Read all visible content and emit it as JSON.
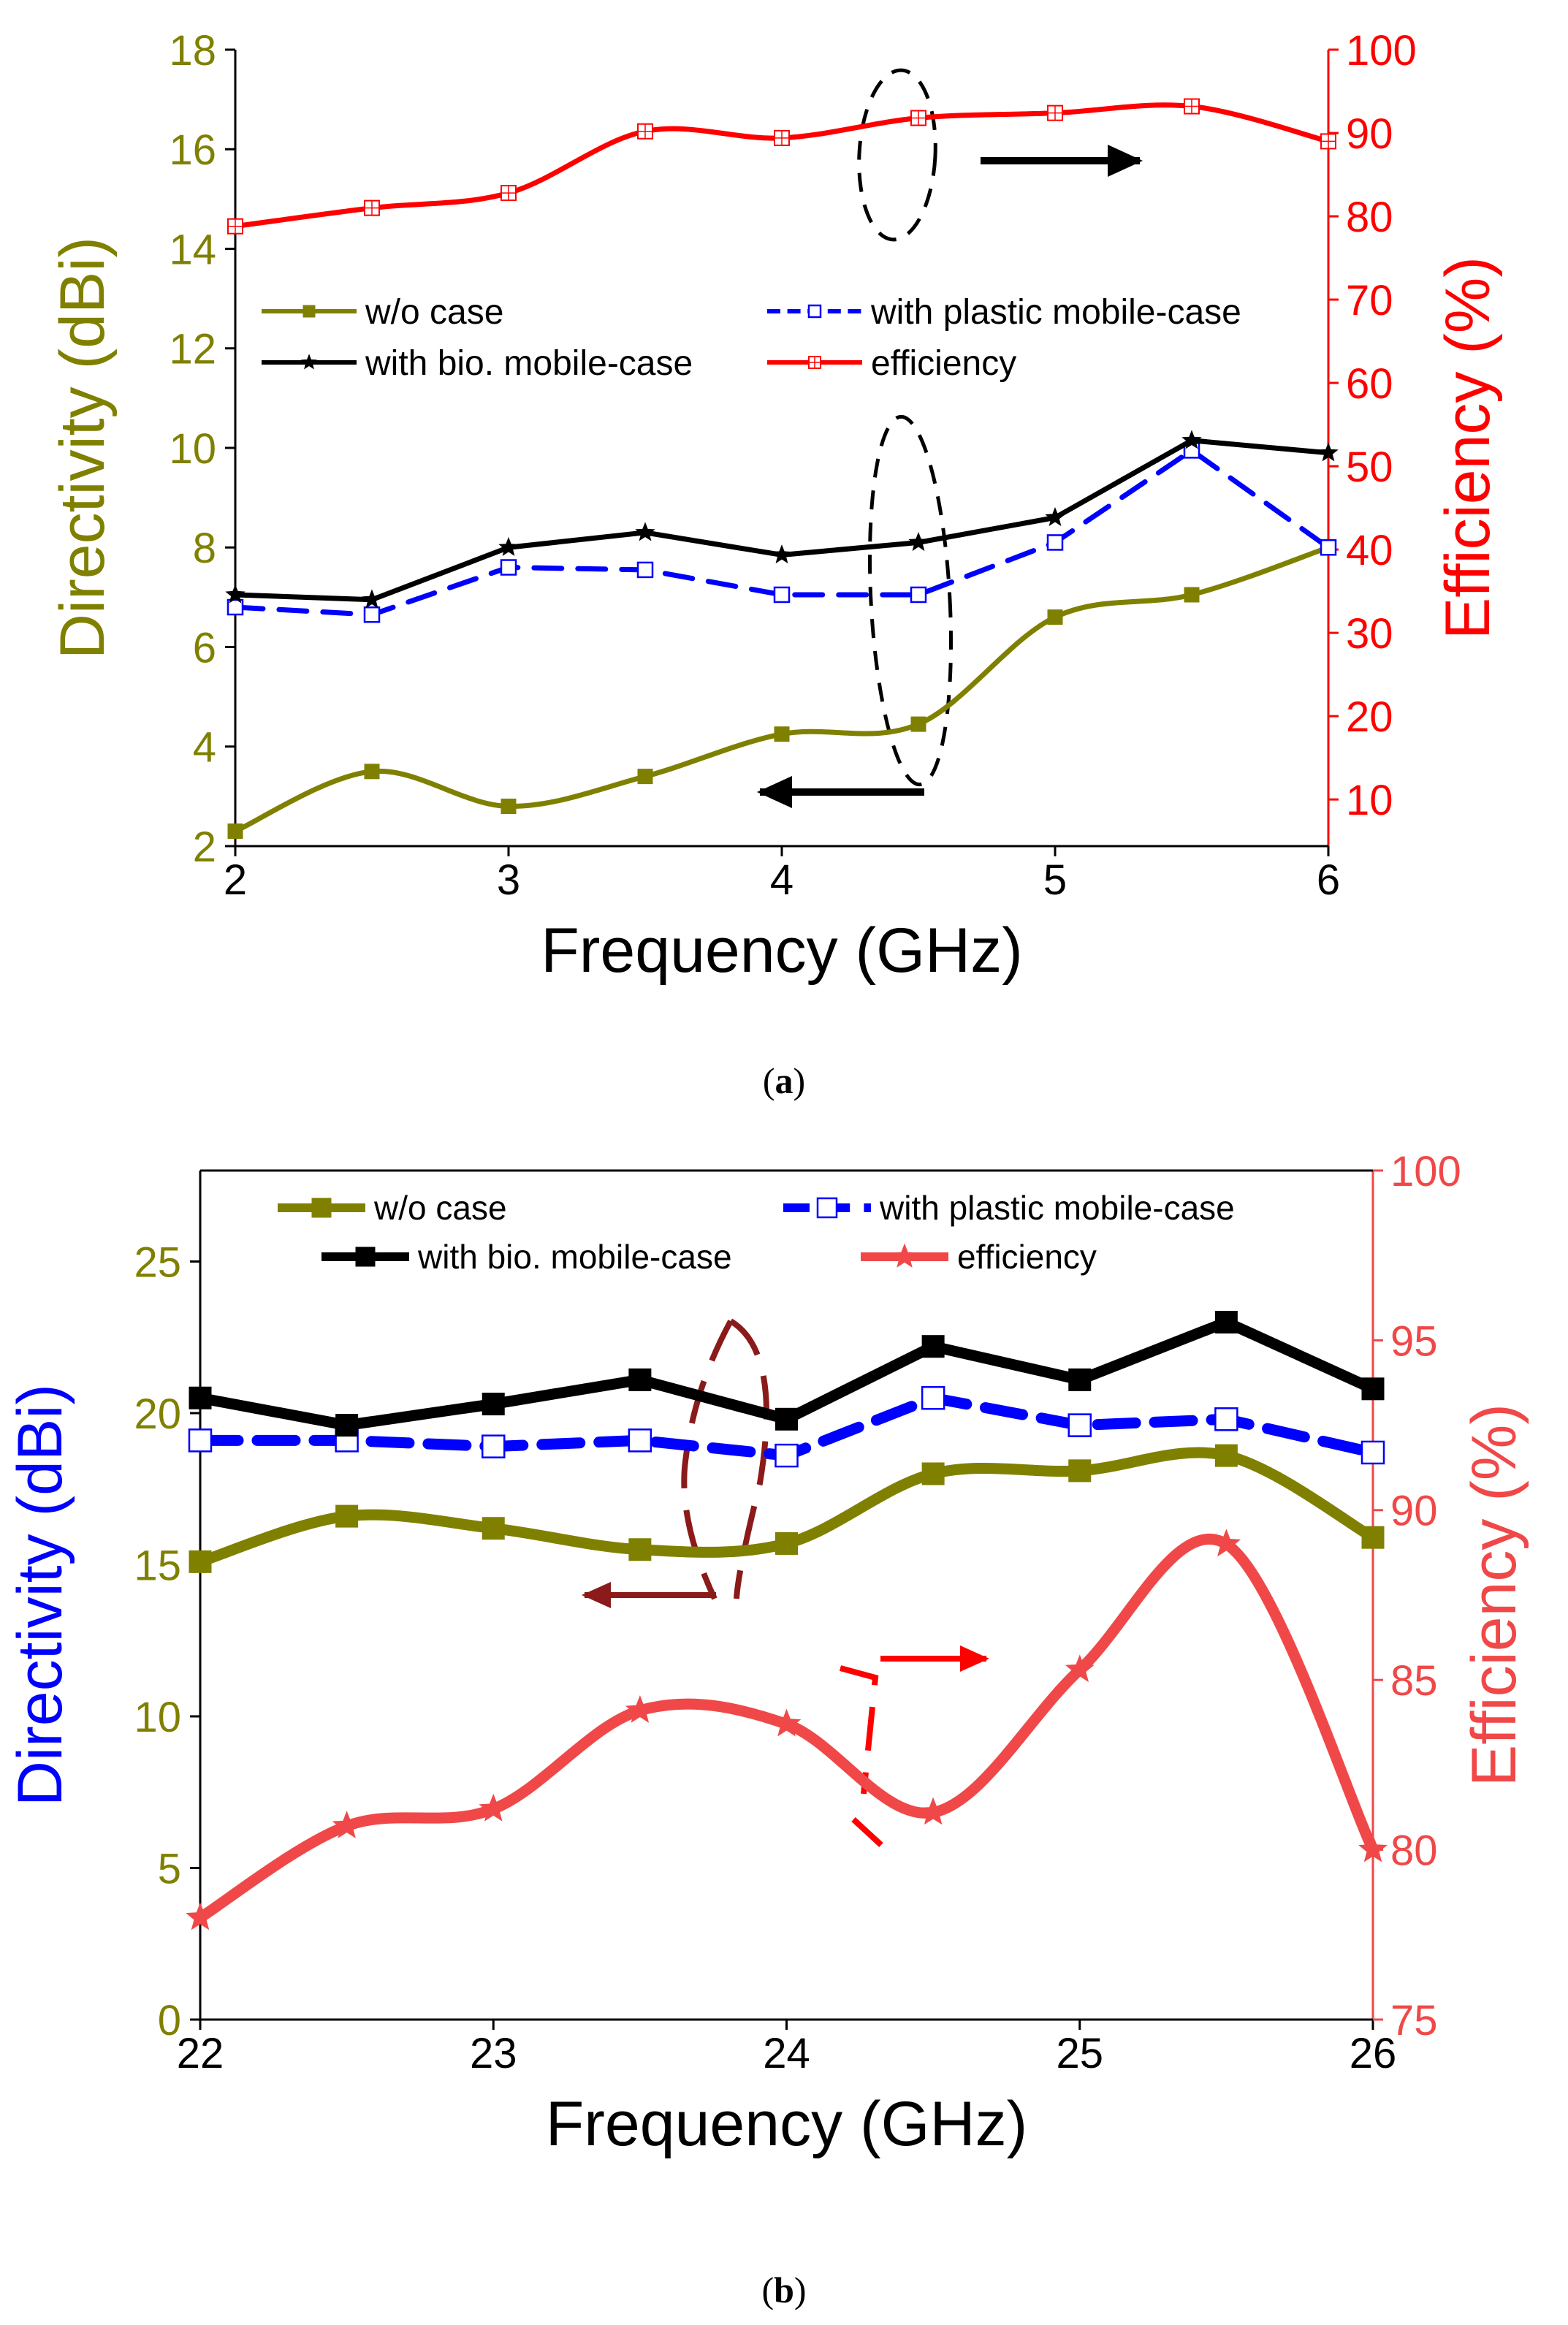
{
  "chart_data": [
    {
      "id": "a",
      "type": "line",
      "xlabel": "Frequency (GHz)",
      "ylabel_left": "Directivity (dBi)",
      "ylabel_right": "Efficiency (%)",
      "xlim": [
        2,
        6
      ],
      "xticks": [
        2,
        3,
        4,
        5,
        6
      ],
      "ylim_left": [
        2,
        18
      ],
      "yticks_left": [
        2,
        4,
        6,
        8,
        10,
        12,
        14,
        16,
        18
      ],
      "ylim_right": [
        4.4,
        100
      ],
      "yticks_right": [
        10,
        20,
        30,
        40,
        50,
        60,
        70,
        80,
        90,
        100
      ],
      "grid": false,
      "legend_placement": "middle",
      "colors": {
        "olive": "#808000",
        "black": "#000000",
        "blue": "#0000ff",
        "red": "#ff0000"
      },
      "x": [
        2,
        2.5,
        3,
        3.5,
        4,
        4.5,
        5,
        5.5,
        6
      ],
      "series": [
        {
          "name": "w/o case",
          "axis": "left",
          "color": "#808000",
          "style": "solid",
          "marker": "square",
          "values": [
            2.3,
            3.5,
            2.8,
            3.4,
            4.25,
            4.45,
            6.6,
            7.05,
            8.0
          ]
        },
        {
          "name": "with plastic mobile-case",
          "axis": "left",
          "color": "#0000ff",
          "style": "dashed",
          "marker": "open-square",
          "values": [
            6.8,
            6.65,
            7.6,
            7.55,
            7.05,
            7.05,
            8.1,
            9.95,
            8.0
          ]
        },
        {
          "name": "with bio. mobile-case",
          "axis": "left",
          "color": "#000000",
          "style": "solid",
          "marker": "star",
          "values": [
            7.05,
            6.95,
            8.0,
            8.3,
            7.85,
            8.1,
            8.6,
            10.15,
            9.9
          ]
        },
        {
          "name": "efficiency",
          "axis": "right",
          "color": "#ff0000",
          "style": "solid",
          "marker": "crossed-square",
          "values": [
            78.8,
            81.0,
            82.8,
            90.2,
            89.4,
            91.8,
            92.4,
            93.2,
            89.0
          ]
        }
      ]
    },
    {
      "id": "b",
      "type": "line",
      "xlabel": "Frequency (GHz)",
      "ylabel_left": "Directivity (dBi)",
      "ylabel_right": "Efficiency (%)",
      "xlim": [
        22,
        26
      ],
      "xticks": [
        22,
        23,
        24,
        25,
        26
      ],
      "ylim_left": [
        0,
        28
      ],
      "yticks_left": [
        0,
        5,
        10,
        15,
        20,
        25
      ],
      "ylim_right": [
        75,
        100
      ],
      "yticks_right": [
        75,
        80,
        85,
        90,
        95,
        100
      ],
      "grid": false,
      "legend_placement": "top",
      "colors": {
        "olive": "#808000",
        "black": "#000000",
        "blue": "#0000ff",
        "red": "#f04848",
        "darkred": "#8b1a1a"
      },
      "x": [
        22,
        22.5,
        23,
        23.5,
        24,
        24.5,
        25,
        25.5,
        26
      ],
      "series": [
        {
          "name": "w/o case",
          "axis": "left",
          "color": "#808000",
          "style": "solid",
          "marker": "square",
          "values": [
            15.1,
            16.6,
            16.2,
            15.5,
            15.7,
            18.0,
            18.1,
            18.6,
            15.9
          ]
        },
        {
          "name": "with plastic mobile-case",
          "axis": "left",
          "color": "#0000ff",
          "style": "dashed",
          "marker": "open-square",
          "values": [
            19.1,
            19.1,
            18.9,
            19.1,
            18.6,
            20.5,
            19.6,
            19.8,
            18.7
          ]
        },
        {
          "name": "with bio. mobile-case",
          "axis": "left",
          "color": "#000000",
          "style": "solid",
          "marker": "square",
          "values": [
            20.5,
            19.6,
            20.3,
            21.1,
            19.8,
            22.2,
            21.1,
            23.0,
            20.8
          ]
        },
        {
          "name": "efficiency",
          "axis": "right",
          "color": "#f04848",
          "style": "solid",
          "marker": "star",
          "values": [
            78.0,
            80.7,
            81.2,
            84.1,
            83.7,
            81.1,
            85.3,
            89.0,
            80.0
          ]
        }
      ]
    }
  ],
  "captions": {
    "a": "a",
    "b": "b"
  }
}
